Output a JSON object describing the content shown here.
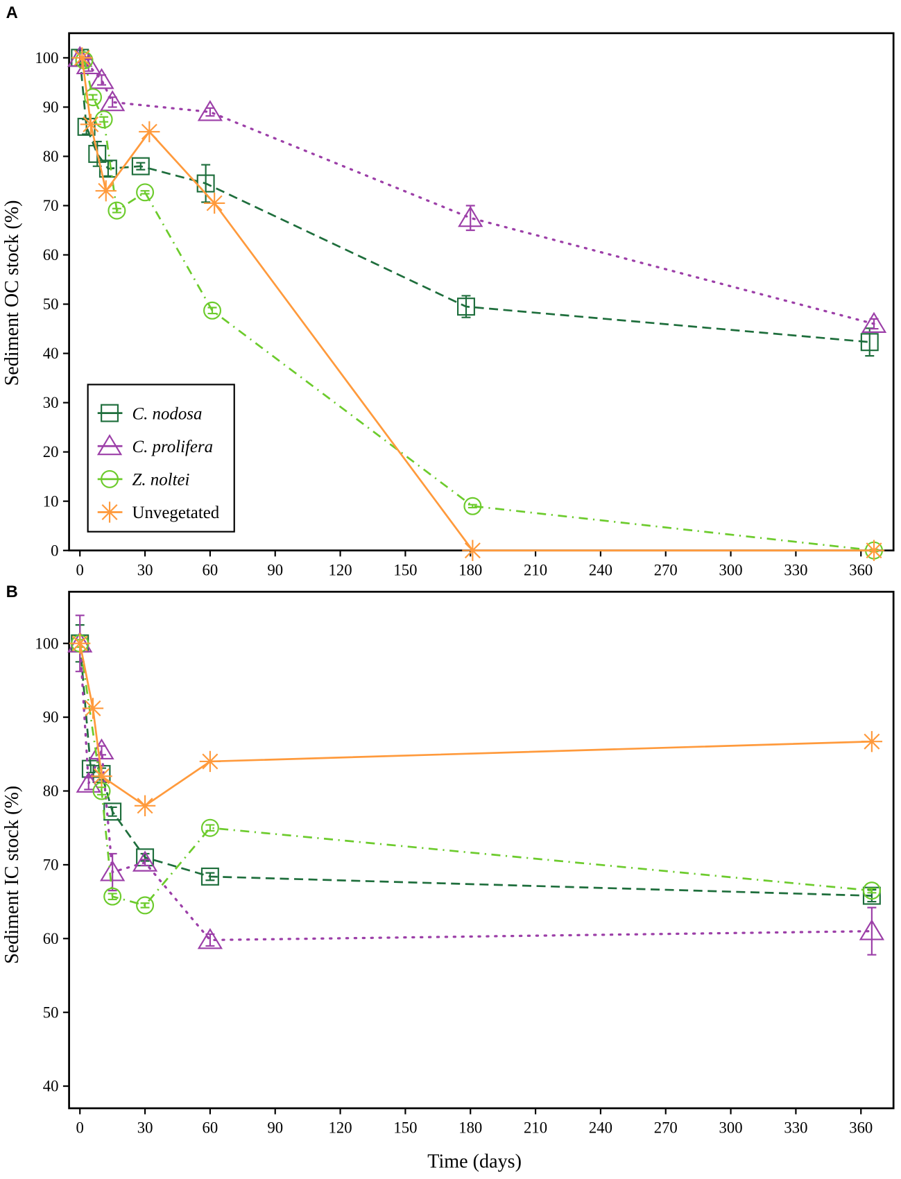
{
  "chart_data": [
    {
      "type": "line",
      "panel": "A",
      "ylabel": "Sediment OC stock (%)",
      "xlabel": "",
      "xlim": [
        -5,
        375
      ],
      "ylim": [
        0,
        105
      ],
      "xticks": [
        0,
        30,
        60,
        90,
        120,
        150,
        180,
        210,
        240,
        270,
        300,
        330,
        360
      ],
      "yticks": [
        0,
        10,
        20,
        30,
        40,
        50,
        60,
        70,
        80,
        90,
        100
      ],
      "legend": {
        "placement": "bottom-left",
        "entries": [
          "C. nodosa",
          "C. prolifera",
          "Z. noltei",
          "Unvegetated"
        ]
      },
      "series": [
        {
          "name": "C. nodosa",
          "color": "#1e6e3c",
          "style": "dashed",
          "marker": "square",
          "x": [
            0,
            3,
            8,
            13,
            28,
            58,
            178,
            364
          ],
          "y": [
            100,
            86,
            80.5,
            77.5,
            78,
            74.5,
            49.5,
            42.3
          ],
          "err": [
            1.5,
            1.5,
            2.5,
            1.5,
            0.7,
            3.8,
            2.2,
            2.8
          ]
        },
        {
          "name": "C. prolifera",
          "color": "#9c3fa8",
          "style": "dotted",
          "marker": "triangle",
          "x": [
            0,
            4,
            10,
            15,
            60,
            180,
            366
          ],
          "y": [
            100,
            98.5,
            95.5,
            91,
            89,
            67.5,
            46
          ],
          "err": [
            1,
            1.2,
            1,
            1,
            0.8,
            2.5,
            1
          ]
        },
        {
          "name": "Z. noltei",
          "color": "#6ccb2c",
          "style": "dashdot",
          "marker": "circle",
          "x": [
            2,
            6,
            11,
            17,
            30,
            61,
            181,
            366
          ],
          "y": [
            99.5,
            92,
            87.5,
            69,
            72.7,
            48.7,
            9,
            0
          ],
          "err": [
            0.5,
            0.5,
            0.5,
            0.4,
            0.3,
            0.6,
            0.3,
            0.2
          ]
        },
        {
          "name": "Unvegetated",
          "color": "#ff9a3c",
          "style": "solid",
          "marker": "asterisk",
          "x": [
            1,
            5,
            12,
            32,
            62,
            181,
            366
          ],
          "y": [
            100,
            86.5,
            73,
            85,
            70.5,
            0,
            0
          ],
          "err": [
            0,
            0,
            0,
            0,
            0,
            0,
            0
          ]
        }
      ]
    },
    {
      "type": "line",
      "panel": "B",
      "ylabel": "Sediment  IC stock (%)",
      "xlabel": "Time (days)",
      "xlim": [
        -5,
        375
      ],
      "ylim": [
        37,
        107
      ],
      "xticks": [
        0,
        30,
        60,
        90,
        120,
        150,
        180,
        210,
        240,
        270,
        300,
        330,
        360
      ],
      "yticks": [
        40,
        50,
        60,
        70,
        80,
        90,
        100
      ],
      "series": [
        {
          "name": "C. nodosa",
          "color": "#1e6e3c",
          "style": "dashed",
          "marker": "square",
          "x": [
            0,
            5,
            10,
            15,
            30,
            60,
            365
          ],
          "y": [
            100,
            83,
            82.3,
            77.2,
            71,
            68.4,
            65.8
          ],
          "err": [
            2.5,
            0.5,
            0.8,
            0.6,
            0.5,
            0.5,
            0.8
          ]
        },
        {
          "name": "C. prolifera",
          "color": "#9c3fa8",
          "style": "dotted",
          "marker": "triangle",
          "x": [
            0,
            4,
            10,
            15,
            30,
            60,
            365
          ],
          "y": [
            100,
            81,
            85.5,
            69,
            70.3,
            59.8,
            61
          ],
          "err": [
            3.8,
            0.8,
            0.6,
            2.5,
            0.4,
            0.8,
            3.2
          ]
        },
        {
          "name": "Z. noltei",
          "color": "#6ccb2c",
          "style": "dashdot",
          "marker": "circle",
          "x": [
            0,
            10,
            15,
            30,
            60,
            365
          ],
          "y": [
            100,
            80,
            65.7,
            64.5,
            75,
            66.5
          ],
          "err": [
            0.5,
            0.5,
            0.4,
            0.3,
            0.4,
            0.3
          ]
        },
        {
          "name": "Unvegetated",
          "color": "#ff9a3c",
          "style": "solid",
          "marker": "asterisk",
          "x": [
            0,
            6,
            10,
            30,
            60,
            365
          ],
          "y": [
            100,
            91.2,
            82,
            78,
            84,
            86.7
          ],
          "err": [
            0,
            0,
            0,
            0,
            0,
            0
          ]
        }
      ]
    }
  ]
}
